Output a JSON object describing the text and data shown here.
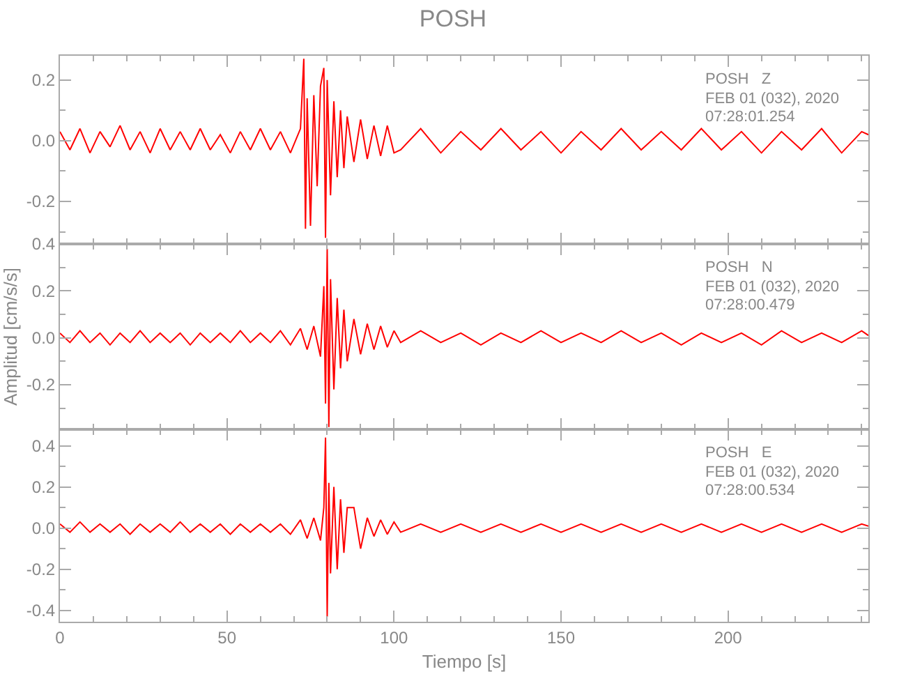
{
  "chart_data": [
    {
      "type": "line",
      "title": "POSH",
      "x": [
        0,
        3,
        6,
        9,
        12,
        15,
        18,
        21,
        24,
        27,
        30,
        33,
        36,
        39,
        42,
        45,
        48,
        51,
        54,
        57,
        60,
        63,
        66,
        69,
        72,
        73,
        73.5,
        74,
        75,
        76,
        77,
        78,
        79,
        79.5,
        80,
        81,
        82,
        83,
        84,
        85,
        86,
        88,
        90,
        92,
        94,
        96,
        98,
        100,
        102,
        108,
        114,
        120,
        126,
        132,
        138,
        144,
        150,
        156,
        162,
        168,
        174,
        180,
        186,
        192,
        198,
        204,
        210,
        216,
        222,
        228,
        234,
        240,
        242
      ],
      "series": [
        {
          "color": "#ff0000",
          "values": [
            0.03,
            -0.03,
            0.04,
            -0.04,
            0.03,
            -0.02,
            0.05,
            -0.03,
            0.03,
            -0.04,
            0.04,
            -0.03,
            0.03,
            -0.03,
            0.04,
            -0.03,
            0.02,
            -0.04,
            0.03,
            -0.03,
            0.04,
            -0.03,
            0.03,
            -0.04,
            0.04,
            0.27,
            -0.29,
            0.14,
            -0.28,
            0.15,
            -0.15,
            0.18,
            0.24,
            -0.32,
            0.2,
            -0.18,
            0.13,
            -0.12,
            0.1,
            -0.09,
            0.08,
            -0.07,
            0.07,
            -0.06,
            0.05,
            -0.05,
            0.05,
            -0.04,
            -0.03,
            0.04,
            -0.04,
            0.03,
            -0.03,
            0.04,
            -0.03,
            0.03,
            -0.04,
            0.03,
            -0.03,
            0.04,
            -0.03,
            0.03,
            -0.03,
            0.04,
            -0.03,
            0.03,
            -0.04,
            0.03,
            -0.03,
            0.04,
            -0.04,
            0.03,
            0.02
          ]
        }
      ],
      "xlim": [
        0,
        242
      ],
      "xticks": [
        0,
        50,
        100,
        150,
        200
      ],
      "ylim": [
        -0.34,
        0.28
      ],
      "yticks": [
        {
          "value": -0.2,
          "label": "-0.2"
        },
        {
          "value": 0,
          "label": "0.0"
        },
        {
          "value": 0.2,
          "label": "0.2"
        }
      ],
      "annotations": [
        "POSH   Z",
        "FEB 01 (032), 2020",
        "07:28:01.254"
      ],
      "tick_labels": "y"
    },
    {
      "type": "line",
      "ylabel": "Amplitud [cm/s/s]",
      "x": [
        0,
        3,
        6,
        9,
        12,
        15,
        18,
        21,
        24,
        27,
        30,
        33,
        36,
        39,
        42,
        45,
        48,
        51,
        54,
        57,
        60,
        63,
        66,
        69,
        72,
        74,
        76,
        78,
        79,
        79.5,
        80,
        80.5,
        81,
        82,
        83,
        84,
        85,
        86,
        88,
        90,
        92,
        94,
        96,
        98,
        100,
        102,
        108,
        114,
        120,
        126,
        132,
        138,
        144,
        150,
        156,
        162,
        168,
        174,
        180,
        186,
        192,
        198,
        204,
        210,
        216,
        222,
        228,
        234,
        240,
        242
      ],
      "series": [
        {
          "color": "#ff0000",
          "values": [
            0.02,
            -0.02,
            0.03,
            -0.02,
            0.02,
            -0.03,
            0.02,
            -0.02,
            0.03,
            -0.02,
            0.02,
            -0.02,
            0.02,
            -0.03,
            0.02,
            -0.02,
            0.02,
            -0.02,
            0.03,
            -0.02,
            0.02,
            -0.02,
            0.03,
            -0.03,
            0.04,
            -0.05,
            0.05,
            -0.08,
            0.22,
            -0.28,
            0.38,
            -0.38,
            0.25,
            -0.22,
            0.17,
            -0.13,
            0.12,
            -0.1,
            0.08,
            -0.07,
            0.06,
            -0.05,
            0.05,
            -0.04,
            0.03,
            -0.02,
            0.03,
            -0.02,
            0.02,
            -0.03,
            0.02,
            -0.02,
            0.03,
            -0.02,
            0.02,
            -0.02,
            0.03,
            -0.02,
            0.02,
            -0.03,
            0.02,
            -0.02,
            0.02,
            -0.03,
            0.03,
            -0.02,
            0.02,
            -0.02,
            0.03,
            0.01
          ]
        }
      ],
      "xlim": [
        0,
        242
      ],
      "xticks": [
        0,
        50,
        100,
        150,
        200
      ],
      "ylim": [
        -0.39,
        0.4
      ],
      "yticks": [
        {
          "value": -0.2,
          "label": "-0.2"
        },
        {
          "value": 0,
          "label": "0.0"
        },
        {
          "value": 0.2,
          "label": "0.2"
        },
        {
          "value": 0.4,
          "label": "0.4"
        }
      ],
      "annotations": [
        "POSH   N",
        "FEB 01 (032), 2020",
        "07:28:00.479"
      ],
      "tick_labels": "y"
    },
    {
      "type": "line",
      "xlabel": "Tiempo [s]",
      "x": [
        0,
        3,
        6,
        9,
        12,
        15,
        18,
        21,
        24,
        27,
        30,
        33,
        36,
        39,
        42,
        45,
        48,
        51,
        54,
        57,
        60,
        63,
        66,
        69,
        72,
        74,
        76,
        78,
        79,
        79.5,
        80,
        80.5,
        81,
        82,
        83,
        84,
        85,
        86,
        88,
        90,
        92,
        94,
        96,
        98,
        100,
        102,
        108,
        114,
        120,
        126,
        132,
        138,
        144,
        150,
        156,
        162,
        168,
        174,
        180,
        186,
        192,
        198,
        204,
        210,
        216,
        222,
        228,
        234,
        240,
        242
      ],
      "series": [
        {
          "color": "#ff0000",
          "values": [
            0.02,
            -0.02,
            0.03,
            -0.02,
            0.02,
            -0.02,
            0.02,
            -0.03,
            0.02,
            -0.02,
            0.02,
            -0.02,
            0.03,
            -0.02,
            0.02,
            -0.02,
            0.02,
            -0.03,
            0.02,
            -0.02,
            0.02,
            -0.02,
            0.02,
            -0.03,
            0.04,
            -0.05,
            0.05,
            -0.06,
            0.1,
            0.44,
            -0.43,
            0.22,
            -0.22,
            0.2,
            -0.2,
            0.14,
            -0.12,
            0.1,
            0.1,
            -0.1,
            0.05,
            -0.04,
            0.04,
            -0.03,
            0.03,
            -0.02,
            0.02,
            -0.02,
            0.02,
            -0.02,
            0.02,
            -0.02,
            0.02,
            -0.02,
            0.02,
            -0.02,
            0.02,
            -0.02,
            0.02,
            -0.02,
            0.02,
            -0.02,
            0.02,
            -0.02,
            0.02,
            -0.02,
            0.02,
            -0.02,
            0.02,
            0.01
          ]
        }
      ],
      "xlim": [
        0,
        242
      ],
      "xticks": [
        0,
        50,
        100,
        150,
        200
      ],
      "ylim": [
        -0.455,
        0.48
      ],
      "yticks": [
        {
          "value": -0.4,
          "label": "-0.4"
        },
        {
          "value": -0.2,
          "label": "-0.2"
        },
        {
          "value": 0,
          "label": "0.0"
        },
        {
          "value": 0.2,
          "label": "0.2"
        },
        {
          "value": 0.4,
          "label": "0.4"
        }
      ],
      "annotations": [
        "POSH   E",
        "FEB 01 (032), 2020",
        "07:28:00.534"
      ]
    }
  ]
}
